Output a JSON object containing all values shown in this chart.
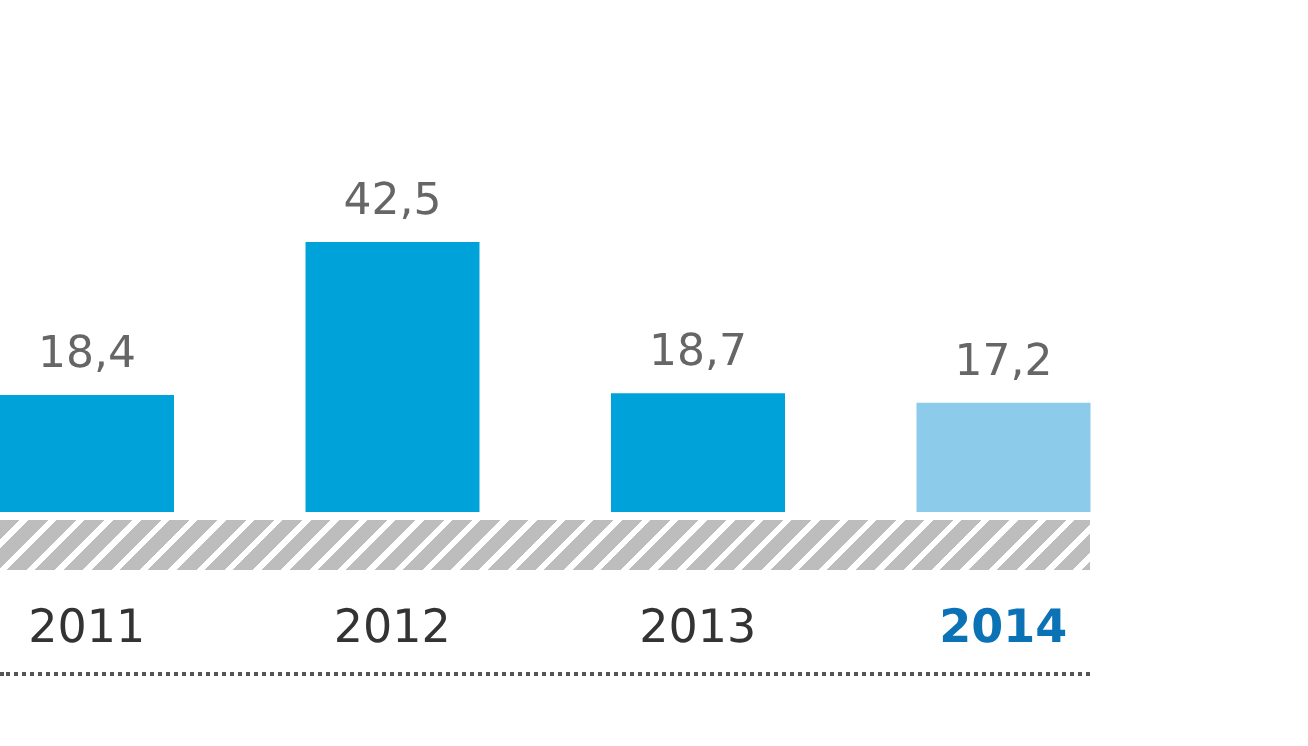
{
  "chart_data": {
    "type": "bar",
    "categories": [
      "2011",
      "2012",
      "2013",
      "2014"
    ],
    "values": [
      18.4,
      42.5,
      18.7,
      17.2
    ],
    "colors": [
      "#00a3d9",
      "#00a3d9",
      "#00a3d9",
      "#8ccbea"
    ],
    "value_labels": [
      "18,4",
      "42,5",
      "18,7",
      "17,2"
    ]
  }
}
